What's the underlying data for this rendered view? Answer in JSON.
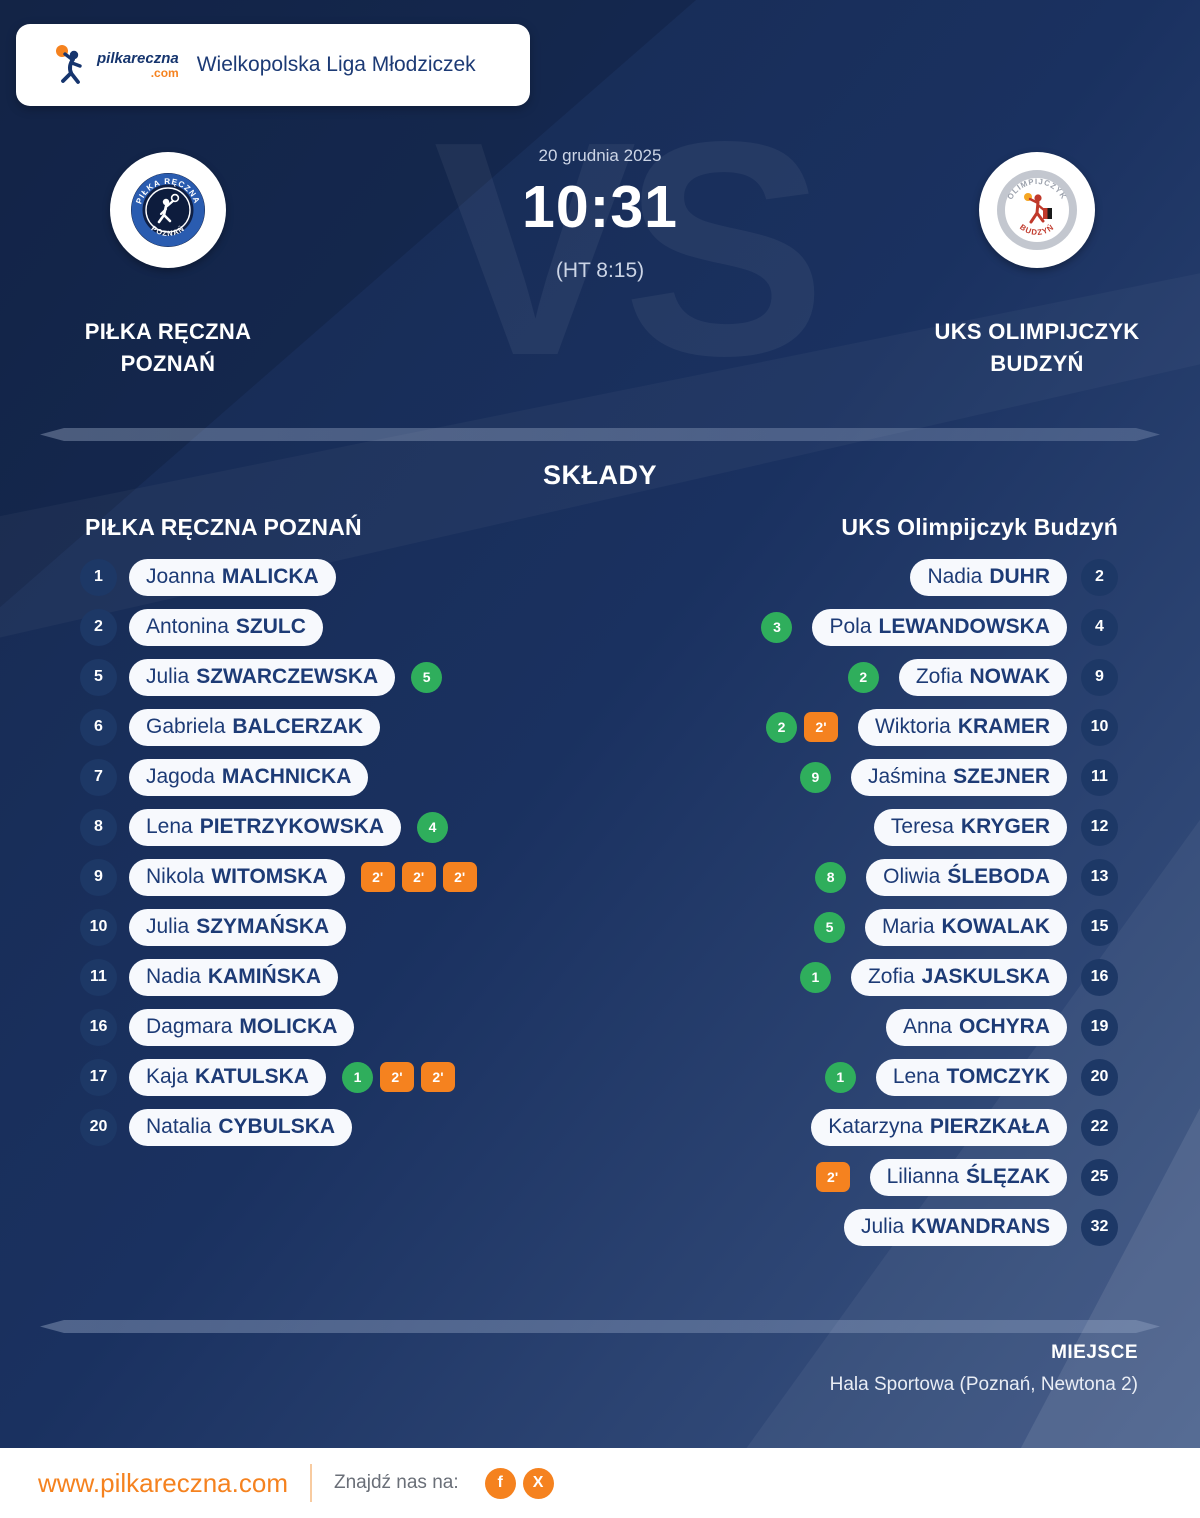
{
  "brand": {
    "name": "pilkareczna",
    "tld": ".com"
  },
  "header": {
    "league_title": "Wielkopolska Liga Młodziczek"
  },
  "match": {
    "date": "20 grudnia 2025",
    "score": "10:31",
    "halftime": "(HT 8:15)",
    "vs_watermark": "VS",
    "home_team": {
      "name_line1": "PIŁKA RĘCZNA",
      "name_line2": "POZNAŃ",
      "logo_arc_top": "PIŁKA RĘCZNA",
      "logo_arc_bottom": "POZNAŃ"
    },
    "away_team": {
      "name_line1": "UKS OLIMPIJCZYK",
      "name_line2": "BUDZYŃ",
      "logo_arc_top": "OLIMPIJCZYK",
      "logo_arc_bottom": "BUDZYŃ"
    }
  },
  "lineups": {
    "section_title": "SKŁADY",
    "home": {
      "header": "PIŁKA RĘCZNA POZNAŃ",
      "players": [
        {
          "number": "1",
          "first": "Joanna",
          "last": "MALICKA",
          "goals": null,
          "penalties": 0
        },
        {
          "number": "2",
          "first": "Antonina",
          "last": "SZULC",
          "goals": null,
          "penalties": 0
        },
        {
          "number": "5",
          "first": "Julia",
          "last": "SZWARCZEWSKA",
          "goals": "5",
          "penalties": 0
        },
        {
          "number": "6",
          "first": "Gabriela",
          "last": "BALCERZAK",
          "goals": null,
          "penalties": 0
        },
        {
          "number": "7",
          "first": "Jagoda",
          "last": "MACHNICKA",
          "goals": null,
          "penalties": 0
        },
        {
          "number": "8",
          "first": "Lena",
          "last": "PIETRZYKOWSKA",
          "goals": "4",
          "penalties": 0
        },
        {
          "number": "9",
          "first": "Nikola",
          "last": "WITOMSKA",
          "goals": null,
          "penalties": 3
        },
        {
          "number": "10",
          "first": "Julia",
          "last": "SZYMAŃSKA",
          "goals": null,
          "penalties": 0
        },
        {
          "number": "11",
          "first": "Nadia",
          "last": "KAMIŃSKA",
          "goals": null,
          "penalties": 0
        },
        {
          "number": "16",
          "first": "Dagmara",
          "last": "MOLICKA",
          "goals": null,
          "penalties": 0
        },
        {
          "number": "17",
          "first": "Kaja",
          "last": "KATULSKA",
          "goals": "1",
          "penalties": 2
        },
        {
          "number": "20",
          "first": "Natalia",
          "last": "CYBULSKA",
          "goals": null,
          "penalties": 0
        }
      ]
    },
    "away": {
      "header": "UKS Olimpijczyk Budzyń",
      "players": [
        {
          "number": "2",
          "first": "Nadia",
          "last": "DUHR",
          "goals": null,
          "penalties": 0
        },
        {
          "number": "4",
          "first": "Pola",
          "last": "LEWANDOWSKA",
          "goals": "3",
          "penalties": 0
        },
        {
          "number": "9",
          "first": "Zofia",
          "last": "NOWAK",
          "goals": "2",
          "penalties": 0
        },
        {
          "number": "10",
          "first": "Wiktoria",
          "last": "KRAMER",
          "goals": "2",
          "penalties": 1
        },
        {
          "number": "11",
          "first": "Jaśmina",
          "last": "SZEJNER",
          "goals": "9",
          "penalties": 0
        },
        {
          "number": "12",
          "first": "Teresa",
          "last": "KRYGER",
          "goals": null,
          "penalties": 0
        },
        {
          "number": "13",
          "first": "Oliwia",
          "last": "ŚLEBODA",
          "goals": "8",
          "penalties": 0
        },
        {
          "number": "15",
          "first": "Maria",
          "last": "KOWALAK",
          "goals": "5",
          "penalties": 0
        },
        {
          "number": "16",
          "first": "Zofia",
          "last": "JASKULSKA",
          "goals": "1",
          "penalties": 0
        },
        {
          "number": "19",
          "first": "Anna",
          "last": "OCHYRA",
          "goals": null,
          "penalties": 0
        },
        {
          "number": "20",
          "first": "Lena",
          "last": "TOMCZYK",
          "goals": "1",
          "penalties": 0
        },
        {
          "number": "22",
          "first": "Katarzyna",
          "last": "PIERZKAŁA",
          "goals": null,
          "penalties": 0
        },
        {
          "number": "25",
          "first": "Lilianna",
          "last": "ŚLĘZAK",
          "goals": null,
          "penalties": 1
        },
        {
          "number": "32",
          "first": "Julia",
          "last": "KWANDRANS",
          "goals": null,
          "penalties": 0
        }
      ]
    }
  },
  "labels": {
    "penalty_badge": "2'"
  },
  "venue": {
    "label": "MIEJSCE",
    "value": "Hala Sportowa (Poznań, Newtona 2)"
  },
  "footer": {
    "website": "www.pilkareczna.com",
    "find_us": "Znajdź nas na:",
    "social": [
      {
        "name": "facebook",
        "glyph": "f"
      },
      {
        "name": "x",
        "glyph": "X"
      }
    ]
  },
  "colors": {
    "goal_green": "#2fae5c",
    "penalty_orange": "#f5821f",
    "accent_orange": "#f5821f",
    "navy_circle": "#1d3866",
    "pill_text": "#1d3b76"
  }
}
